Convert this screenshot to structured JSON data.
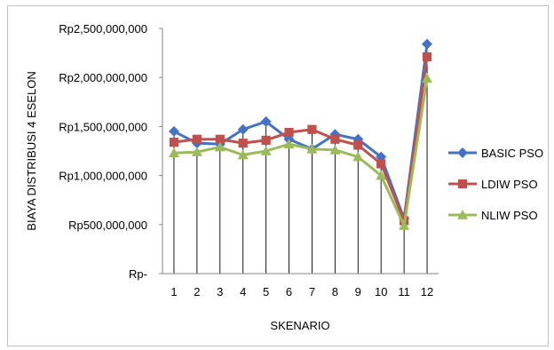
{
  "chart_data": {
    "type": "line",
    "xlabel": "SKENARIO",
    "ylabel": "BIAYA DISTRIBUSI 4 ESELON",
    "categories": [
      "1",
      "2",
      "3",
      "4",
      "5",
      "6",
      "7",
      "8",
      "9",
      "10",
      "11",
      "12"
    ],
    "ylim": [
      0,
      2500000000
    ],
    "yticks": [
      {
        "value": 0,
        "label": "Rp-"
      },
      {
        "value": 500000000,
        "label": "Rp500,000,000"
      },
      {
        "value": 1000000000,
        "label": "Rp1,000,000,000"
      },
      {
        "value": 1500000000,
        "label": "Rp1,500,000,000"
      },
      {
        "value": 2000000000,
        "label": "Rp2,000,000,000"
      },
      {
        "value": 2500000000,
        "label": "Rp2,500,000,000"
      }
    ],
    "grid": "vertical drop lines per category",
    "legend_position": "right",
    "series": [
      {
        "name": "BASIC PSO",
        "color": "#4472C4",
        "marker": "diamond",
        "values": [
          1450000000,
          1330000000,
          1320000000,
          1470000000,
          1550000000,
          1370000000,
          1270000000,
          1420000000,
          1370000000,
          1190000000,
          560000000,
          2340000000
        ]
      },
      {
        "name": "LDIW PSO",
        "color": "#C0504D",
        "marker": "square",
        "values": [
          1340000000,
          1370000000,
          1370000000,
          1330000000,
          1360000000,
          1440000000,
          1470000000,
          1370000000,
          1310000000,
          1120000000,
          540000000,
          2210000000
        ]
      },
      {
        "name": "NLIW PSO",
        "color": "#9BBB59",
        "marker": "triangle",
        "values": [
          1230000000,
          1240000000,
          1290000000,
          1210000000,
          1250000000,
          1320000000,
          1270000000,
          1260000000,
          1190000000,
          1000000000,
          490000000,
          1990000000
        ]
      }
    ]
  }
}
